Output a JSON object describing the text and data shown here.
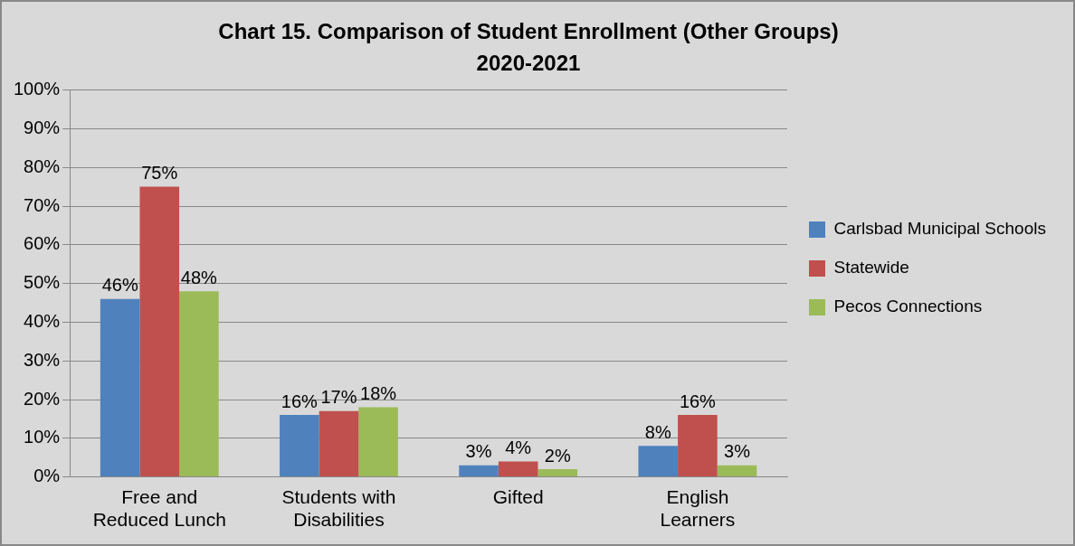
{
  "chart_data": {
    "type": "bar",
    "title": "Chart 15. Comparison of Student Enrollment (Other Groups)",
    "subtitle": "2020-2021",
    "categories": [
      "Free and Reduced Lunch",
      "Students with Disabilities",
      "Gifted",
      "English Learners"
    ],
    "series": [
      {
        "name": "Carlsbad Municipal Schools",
        "color": "#4f81bd",
        "values": [
          46,
          16,
          3,
          8
        ],
        "value_labels": [
          "46%",
          "16%",
          "3%",
          "8%"
        ]
      },
      {
        "name": "Statewide",
        "color": "#c0504d",
        "values": [
          75,
          17,
          4,
          16
        ],
        "value_labels": [
          "75%",
          "17%",
          "4%",
          "16%"
        ]
      },
      {
        "name": "Pecos Connections",
        "color": "#9bbb59",
        "values": [
          48,
          18,
          2,
          3
        ],
        "value_labels": [
          "48%",
          "18%",
          "2%",
          "3%"
        ]
      }
    ],
    "ylim": [
      0,
      100
    ],
    "yticks": [
      {
        "value": 0,
        "label": "0%"
      },
      {
        "value": 10,
        "label": "10%"
      },
      {
        "value": 20,
        "label": "20%"
      },
      {
        "value": 30,
        "label": "30%"
      },
      {
        "value": 40,
        "label": "40%"
      },
      {
        "value": 50,
        "label": "50%"
      },
      {
        "value": 60,
        "label": "60%"
      },
      {
        "value": 70,
        "label": "70%"
      },
      {
        "value": 80,
        "label": "80%"
      },
      {
        "value": 90,
        "label": "90%"
      },
      {
        "value": 100,
        "label": "100%"
      }
    ],
    "grid": "y",
    "legend": "right"
  }
}
